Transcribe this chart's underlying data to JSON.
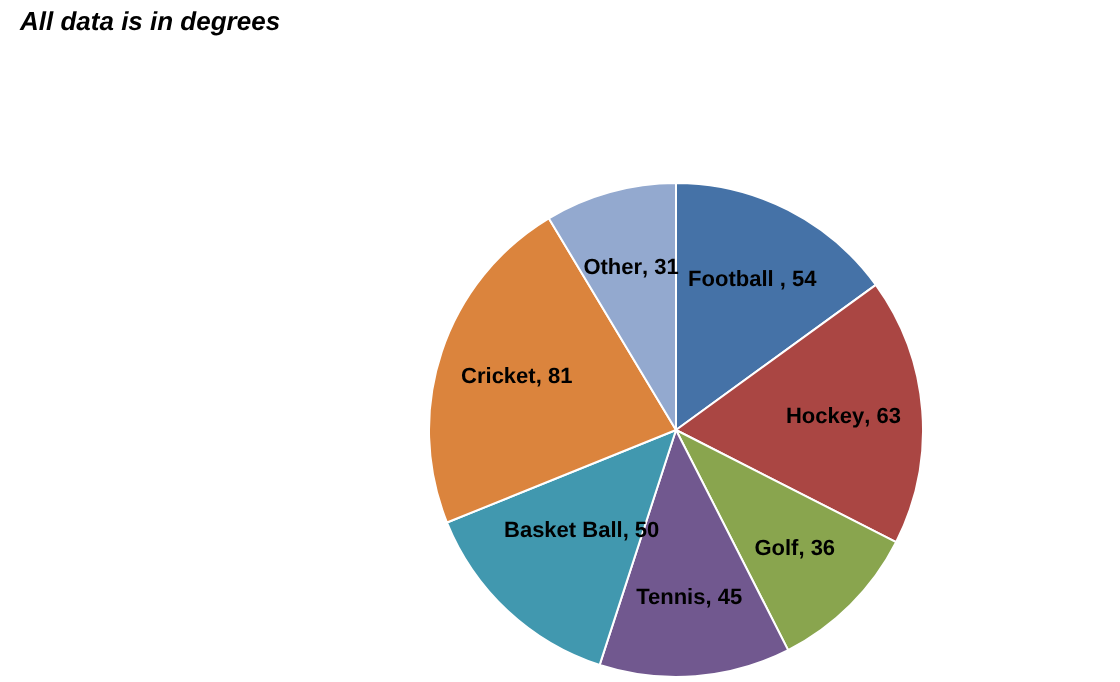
{
  "chart_data": {
    "type": "pie",
    "title": "All data is in degrees",
    "categories": [
      "Football ",
      "Hockey",
      "Golf",
      "Tennis",
      "Basket Ball",
      "Cricket",
      "Other"
    ],
    "values": [
      54,
      63,
      36,
      45,
      50,
      81,
      31
    ],
    "colors": [
      "#4572a7",
      "#aa4643",
      "#89a54e",
      "#71588f",
      "#4198af",
      "#db843d",
      "#93a9cf"
    ],
    "value_labels": [
      ", 54",
      ", 63",
      ", 36",
      ", 45",
      ", 50",
      ", 81",
      ", 31"
    ],
    "legend": false
  }
}
